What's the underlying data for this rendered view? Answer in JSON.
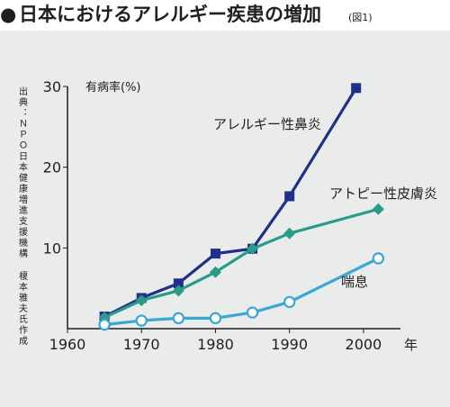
{
  "header": {
    "bullet": "●",
    "title": "日本におけるアレルギー疾患の増加",
    "figure_label": "(図1)"
  },
  "source": {
    "text": "出典：ＮＰＯ日本健康増進支援機構 榎本雅夫氏作成"
  },
  "colors": {
    "background": "#ffffff",
    "panel": "#e9ecea",
    "text": "#1f1f1f",
    "allergic_rhinitis": "#1f2f8a",
    "atopic_dermatitis": "#2a9b8b",
    "asthma": "#38a8d6",
    "asthma_fill": "#ffffff"
  },
  "chart_data": {
    "type": "line",
    "title": "日本におけるアレルギー疾患の増加",
    "xlabel": "年",
    "ylabel": "有病率(%)",
    "xlim": [
      1960,
      2005
    ],
    "ylim": [
      0,
      30
    ],
    "xticks": [
      1960,
      1970,
      1980,
      1990,
      2000
    ],
    "yticks": [
      10,
      20,
      30
    ],
    "x_tick_labels": [
      "1960",
      "1970",
      "1980",
      "1990",
      "2000"
    ],
    "y_tick_labels": [
      "10",
      "20",
      "30"
    ],
    "grid": false,
    "series": [
      {
        "name": "アレルギー性鼻炎",
        "marker": "square",
        "color": "#1f2f8a",
        "x": [
          1965,
          1970,
          1975,
          1980,
          1985,
          1990,
          1999
        ],
        "y": [
          1.5,
          3.8,
          5.6,
          9.3,
          9.9,
          16.4,
          29.8
        ]
      },
      {
        "name": "アトピー性皮膚炎",
        "marker": "diamond",
        "color": "#2a9b8b",
        "x": [
          1965,
          1970,
          1975,
          1980,
          1985,
          1990,
          2002
        ],
        "y": [
          1.4,
          3.5,
          4.7,
          7.0,
          9.9,
          11.8,
          14.8
        ]
      },
      {
        "name": "喘息",
        "marker": "circle",
        "color": "#38a8d6",
        "x": [
          1965,
          1970,
          1975,
          1980,
          1985,
          1990,
          2002
        ],
        "y": [
          0.5,
          1.0,
          1.3,
          1.3,
          2.0,
          3.3,
          8.7
        ]
      }
    ]
  }
}
